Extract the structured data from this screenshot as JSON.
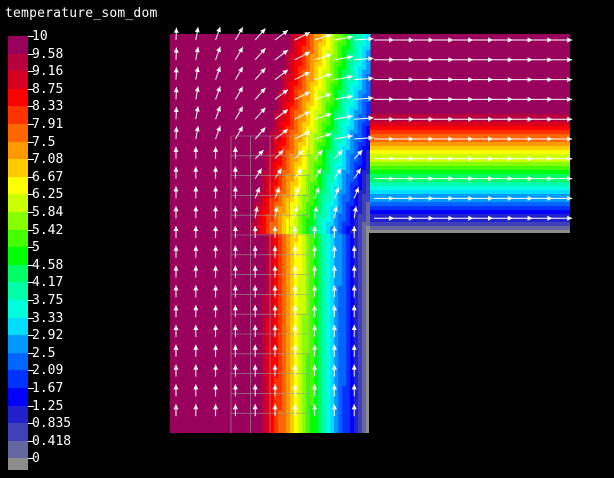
{
  "window": {
    "title": "temperature_som_dom"
  },
  "colors": {
    "background": "#000000",
    "text": "#ffffff",
    "arrow": "#ffffff",
    "mesh": "#9a9a9a"
  },
  "legend": {
    "levels": [
      {
        "label": "10",
        "color": "#99005c"
      },
      {
        "label": "9.58",
        "color": "#b8003f"
      },
      {
        "label": "9.16",
        "color": "#d80020"
      },
      {
        "label": "8.75",
        "color": "#ff0000"
      },
      {
        "label": "8.33",
        "color": "#ff3300"
      },
      {
        "label": "7.91",
        "color": "#ff6600"
      },
      {
        "label": "7.5",
        "color": "#ff9900"
      },
      {
        "label": "7.08",
        "color": "#ffcc00"
      },
      {
        "label": "6.67",
        "color": "#ffff00"
      },
      {
        "label": "6.25",
        "color": "#ccff00"
      },
      {
        "label": "5.84",
        "color": "#88ff00"
      },
      {
        "label": "5.42",
        "color": "#44ff00"
      },
      {
        "label": "5",
        "color": "#00ff00"
      },
      {
        "label": "4.58",
        "color": "#00ff66"
      },
      {
        "label": "4.17",
        "color": "#00ffaa"
      },
      {
        "label": "3.75",
        "color": "#00ffdd"
      },
      {
        "label": "3.33",
        "color": "#00ddff"
      },
      {
        "label": "2.92",
        "color": "#0099ff"
      },
      {
        "label": "2.5",
        "color": "#0066ff"
      },
      {
        "label": "2.09",
        "color": "#0033ff"
      },
      {
        "label": "1.67",
        "color": "#0000ff"
      },
      {
        "label": "1.25",
        "color": "#2222cc"
      },
      {
        "label": "0.835",
        "color": "#4040b8"
      },
      {
        "label": "0.418",
        "color": "#6666a0"
      },
      {
        "label": "0",
        "color": "#8c8c8c"
      }
    ]
  }
}
